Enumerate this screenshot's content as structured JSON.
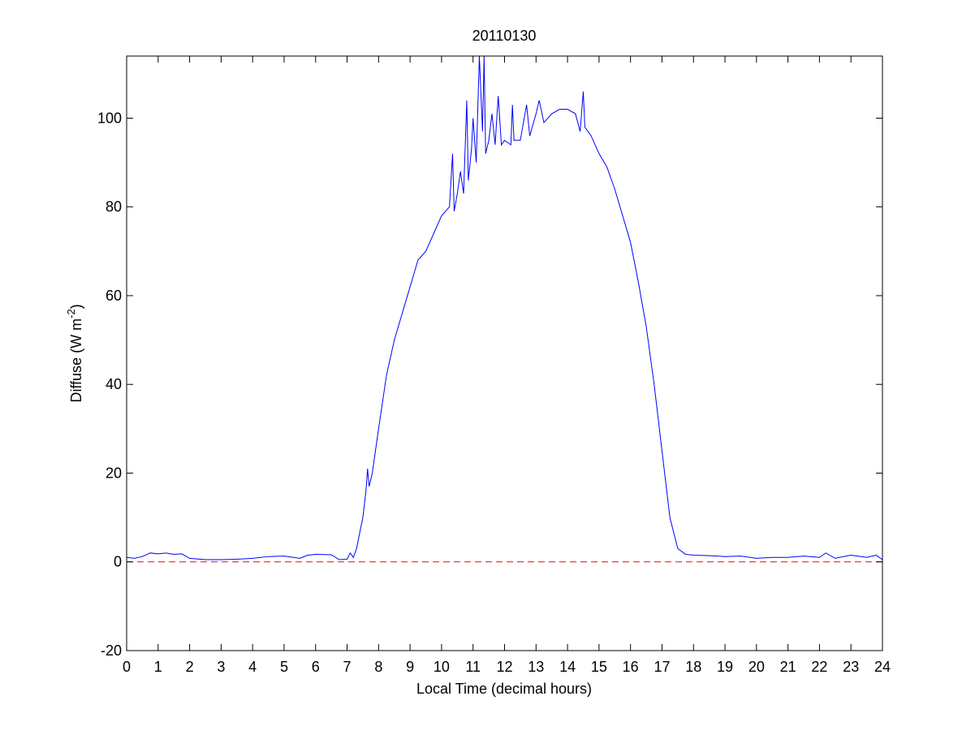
{
  "chart_data": {
    "type": "line",
    "title": "20110130",
    "xlabel": "Local Time (decimal hours)",
    "ylabel": "Diffuse (W m",
    "ylabel_sup": "-2",
    "ylabel_end": ")",
    "xlim": [
      0,
      24
    ],
    "xticks": [
      0,
      1,
      2,
      3,
      4,
      5,
      6,
      7,
      8,
      9,
      10,
      11,
      12,
      13,
      14,
      15,
      16,
      17,
      18,
      19,
      20,
      21,
      22,
      23,
      24
    ],
    "ylim": [
      -20,
      114
    ],
    "yticks": [
      -20,
      0,
      20,
      40,
      60,
      80,
      100
    ],
    "grid": false,
    "reference_line": {
      "value": 0,
      "color": "#ff0000",
      "style": "dashed"
    },
    "series": [
      {
        "color": "#0000ff",
        "x": [
          0,
          0.25,
          0.5,
          0.75,
          1,
          1.25,
          1.5,
          1.75,
          2,
          2.5,
          3,
          3.5,
          4,
          4.5,
          5,
          5.5,
          5.75,
          6,
          6.5,
          6.75,
          7,
          7.1,
          7.2,
          7.3,
          7.5,
          7.6,
          7.65,
          7.7,
          7.8,
          8,
          8.25,
          8.5,
          8.75,
          9,
          9.25,
          9.5,
          9.75,
          10,
          10.25,
          10.35,
          10.4,
          10.5,
          10.6,
          10.7,
          10.8,
          10.85,
          10.95,
          11,
          11.1,
          11.2,
          11.3,
          11.35,
          11.4,
          11.5,
          11.6,
          11.7,
          11.8,
          11.9,
          12,
          12.2,
          12.25,
          12.3,
          12.5,
          12.7,
          12.8,
          13,
          13.1,
          13.25,
          13.5,
          13.75,
          14,
          14.25,
          14.4,
          14.5,
          14.55,
          14.75,
          15,
          15.25,
          15.5,
          15.75,
          16,
          16.25,
          16.5,
          16.75,
          17,
          17.25,
          17.5,
          17.75,
          18,
          18.5,
          19,
          19.5,
          20,
          20.5,
          21,
          21.5,
          22,
          22.2,
          22.5,
          23,
          23.5,
          23.8,
          24
        ],
        "values": [
          1,
          0.8,
          1.2,
          2,
          1.8,
          2,
          1.7,
          1.8,
          0.8,
          0.5,
          0.5,
          0.6,
          0.8,
          1.2,
          1.3,
          0.8,
          1.5,
          1.7,
          1.6,
          0.5,
          0.6,
          2,
          1,
          3,
          10,
          16,
          21,
          17,
          20,
          30,
          42,
          50,
          56,
          62,
          68,
          70,
          74,
          78,
          80,
          92,
          79,
          83,
          88,
          83,
          104,
          86,
          93,
          100,
          90,
          114,
          97,
          114,
          92,
          95,
          101,
          94,
          105,
          94,
          95,
          94,
          103,
          95,
          95,
          103,
          96,
          101,
          104,
          99,
          101,
          102,
          102,
          101,
          97,
          106,
          98,
          96,
          92,
          89,
          84,
          78,
          72,
          63,
          53,
          40,
          25,
          10,
          3,
          1.7,
          1.5,
          1.4,
          1.2,
          1.3,
          0.8,
          1,
          1,
          1.3,
          1,
          2,
          0.8,
          1.5,
          1,
          1.5,
          0.5
        ]
      }
    ]
  }
}
